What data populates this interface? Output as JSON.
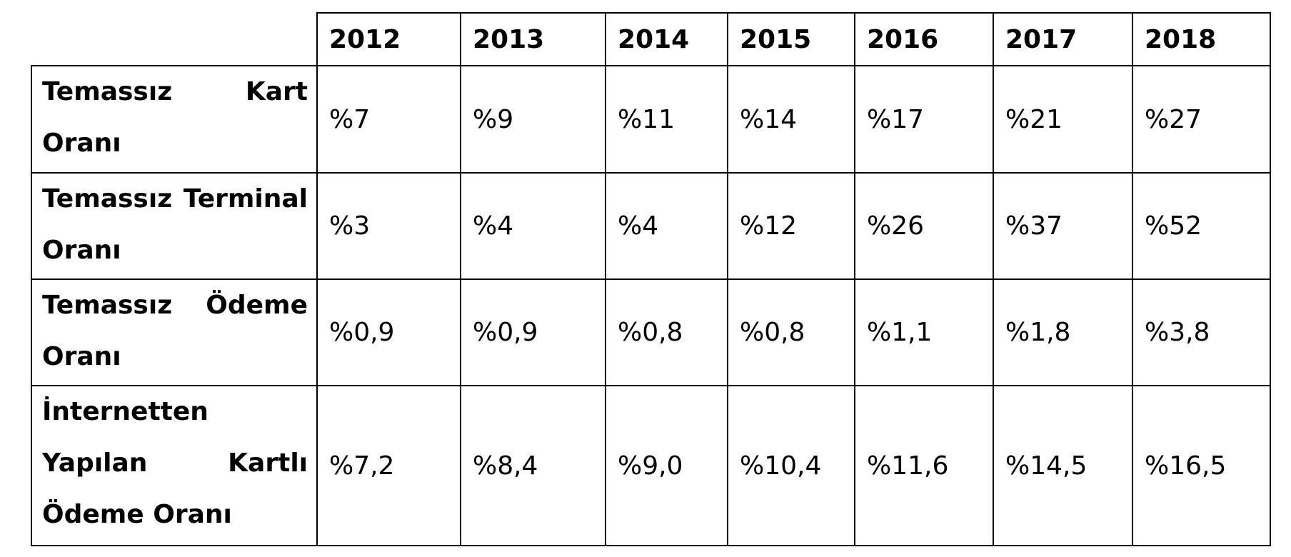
{
  "table": {
    "columns": [
      "2012",
      "2013",
      "2014",
      "2015",
      "2016",
      "2017",
      "2018"
    ],
    "rows": [
      {
        "label": "Temassız Kart Oranı",
        "values": [
          "%7",
          "%9",
          "%11",
          "%14",
          "%17",
          "%21",
          "%27"
        ]
      },
      {
        "label": "Temassız Terminal Oranı",
        "values": [
          "%3",
          "%4",
          "%4",
          "%12",
          "%26",
          "%37",
          "%52"
        ]
      },
      {
        "label": "Temassız Ödeme Oranı",
        "values": [
          "%0,9",
          "%0,9",
          "%0,8",
          "%0,8",
          "%1,1",
          "%1,8",
          "%3,8"
        ]
      },
      {
        "label": "İnternetten Yapılan Kartlı Ödeme Oranı",
        "values": [
          "%7,2",
          "%8,4",
          "%9,0",
          "%10,4",
          "%11,6",
          "%14,5",
          "%16,5"
        ]
      }
    ]
  }
}
